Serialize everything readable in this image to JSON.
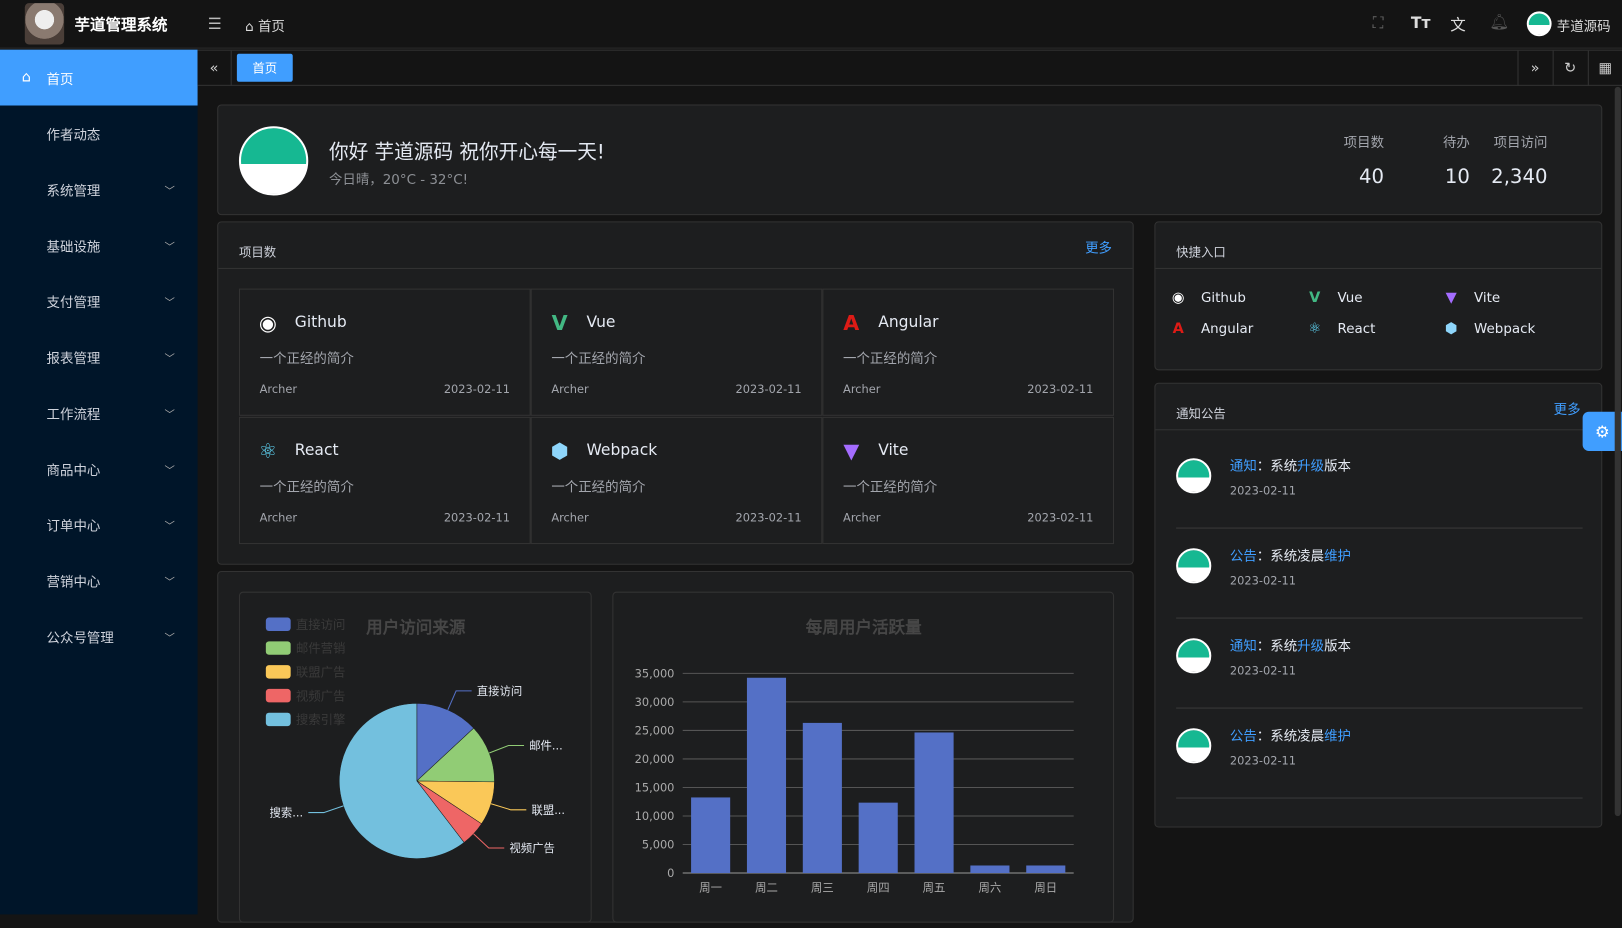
{
  "header": {
    "app_title": "芋道管理系统",
    "breadcrumb": "首页",
    "user_name": "芋道源码",
    "icons": [
      "menu-fold-icon",
      "home-icon",
      "fullscreen-icon",
      "font-size-icon",
      "translate-icon",
      "bell-icon"
    ]
  },
  "sidebar": {
    "items": [
      {
        "label": "首页",
        "active": true,
        "icon": "home-icon"
      },
      {
        "label": "作者动态"
      },
      {
        "label": "系统管理",
        "expandable": true
      },
      {
        "label": "基础设施",
        "expandable": true
      },
      {
        "label": "支付管理",
        "expandable": true
      },
      {
        "label": "报表管理",
        "expandable": true
      },
      {
        "label": "工作流程",
        "expandable": true
      },
      {
        "label": "商品中心",
        "expandable": true
      },
      {
        "label": "订单中心",
        "expandable": true
      },
      {
        "label": "营销中心",
        "expandable": true
      },
      {
        "label": "公众号管理",
        "expandable": true
      }
    ]
  },
  "tabs": [
    {
      "label": "首页",
      "active": true
    }
  ],
  "welcome": {
    "greeting": "你好 芋道源码 祝你开心每一天!",
    "weather": "今日晴，20°C - 32°C!",
    "stats": [
      {
        "label": "项目数",
        "value": "40"
      },
      {
        "label": "待办",
        "value": "10"
      },
      {
        "label": "项目访问",
        "value": "2,340"
      }
    ]
  },
  "projects": {
    "title": "项目数",
    "more": "更多",
    "items": [
      {
        "name": "Github",
        "icon": "github-icon",
        "color": "#ffffff",
        "desc": "一个正经的简介",
        "author": "Archer",
        "date": "2023-02-11"
      },
      {
        "name": "Vue",
        "icon": "vue-icon",
        "color": "#42b883",
        "desc": "一个正经的简介",
        "author": "Archer",
        "date": "2023-02-11"
      },
      {
        "name": "Angular",
        "icon": "angular-icon",
        "color": "#dd1b16",
        "desc": "一个正经的简介",
        "author": "Archer",
        "date": "2023-02-11"
      },
      {
        "name": "React",
        "icon": "react-icon",
        "color": "#61dafb",
        "desc": "一个正经的简介",
        "author": "Archer",
        "date": "2023-02-11"
      },
      {
        "name": "Webpack",
        "icon": "webpack-icon",
        "color": "#8ed6fb",
        "desc": "一个正经的简介",
        "author": "Archer",
        "date": "2023-02-11"
      },
      {
        "name": "Vite",
        "icon": "vite-icon",
        "color": "#a46cff",
        "desc": "一个正经的简介",
        "author": "Archer",
        "date": "2023-02-11"
      }
    ]
  },
  "quick": {
    "title": "快捷入口",
    "items": [
      {
        "name": "Github",
        "icon": "github-icon",
        "color": "#ffffff"
      },
      {
        "name": "Vue",
        "icon": "vue-icon",
        "color": "#42b883"
      },
      {
        "name": "Vite",
        "icon": "vite-icon",
        "color": "#a46cff"
      },
      {
        "name": "Angular",
        "icon": "angular-icon",
        "color": "#dd1b16"
      },
      {
        "name": "React",
        "icon": "react-icon",
        "color": "#61dafb"
      },
      {
        "name": "Webpack",
        "icon": "webpack-icon",
        "color": "#8ed6fb"
      }
    ]
  },
  "notices": {
    "title": "通知公告",
    "more": "更多",
    "items": [
      {
        "type": "通知",
        "sep": "：",
        "a": "系统",
        "b": "升级",
        "c": "版本",
        "date": "2023-02-11"
      },
      {
        "type": "公告",
        "sep": "：",
        "a": "系统凌晨",
        "b": "维护",
        "c": "",
        "date": "2023-02-11"
      },
      {
        "type": "通知",
        "sep": "：",
        "a": "系统",
        "b": "升级",
        "c": "版本",
        "date": "2023-02-11"
      },
      {
        "type": "公告",
        "sep": "：",
        "a": "系统凌晨",
        "b": "维护",
        "c": "",
        "date": "2023-02-11"
      }
    ]
  },
  "colors": {
    "accent": "#409eff",
    "sidebar": "#001529"
  },
  "chart_data": [
    {
      "type": "pie",
      "title": "用户访问来源",
      "legend": "top-left",
      "categories": [
        "直接访问",
        "邮件营销",
        "联盟广告",
        "视频广告",
        "搜索引擎"
      ],
      "values": [
        335,
        310,
        234,
        135,
        1548
      ],
      "labels": [
        "直接访问",
        "邮件...",
        "联盟...",
        "视频广告",
        "搜索..."
      ],
      "colors": [
        "#5470c6",
        "#91cc75",
        "#fac858",
        "#ee6666",
        "#73c0de"
      ]
    },
    {
      "type": "bar",
      "title": "每周用户活跃量",
      "categories": [
        "周一",
        "周二",
        "周三",
        "周四",
        "周五",
        "周六",
        "周日"
      ],
      "values": [
        13253,
        34235,
        26321,
        12340,
        24643,
        1322,
        1324
      ],
      "ylim": [
        0,
        35000
      ],
      "yticks": [
        "0",
        "5,000",
        "10,000",
        "15,000",
        "20,000",
        "25,000",
        "30,000",
        "35,000"
      ],
      "grid": true,
      "color": "#5470c6"
    }
  ]
}
